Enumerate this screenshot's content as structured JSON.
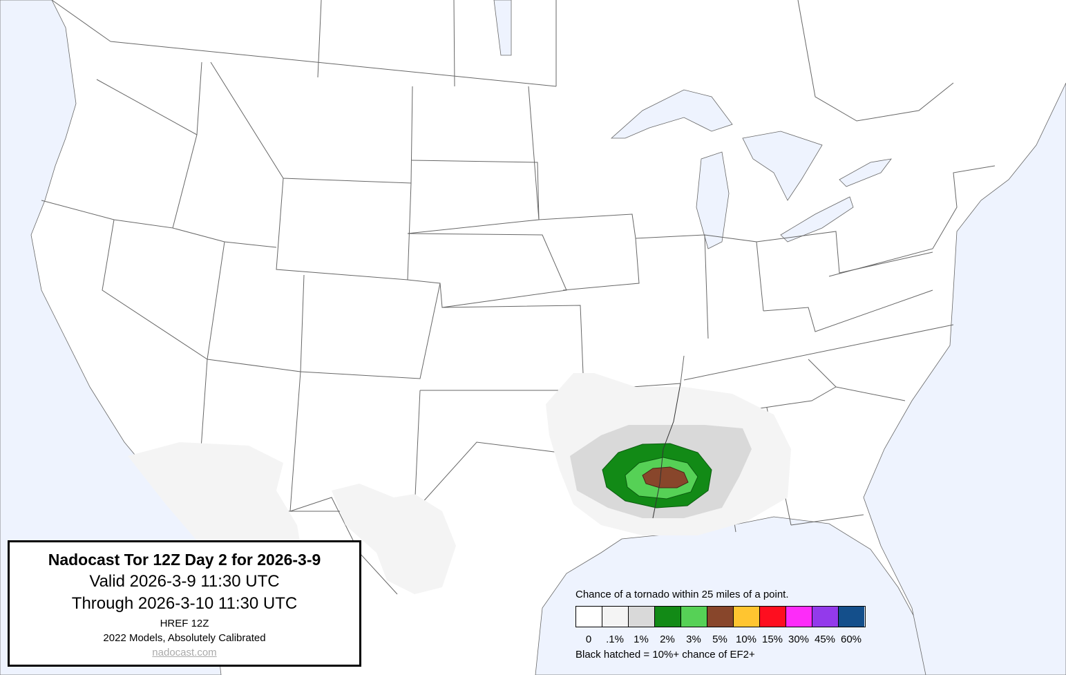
{
  "title_box": {
    "title": "Nadocast Tor 12Z Day 2 for 2026-3-9",
    "valid": "Valid 2026-3-9 11:30 UTC",
    "through": "Through 2026-3-10 11:30 UTC",
    "model": "HREF 12Z",
    "calibration": "2022 Models, Absolutely Calibrated",
    "link": "nadocast.com"
  },
  "legend": {
    "title": "Chance of a tornado within 25 miles of a point.",
    "items": [
      {
        "label": "0",
        "color": "#ffffff"
      },
      {
        "label": ".1%",
        "color": "#f4f4f4"
      },
      {
        "label": "1%",
        "color": "#d9d9d9"
      },
      {
        "label": "2%",
        "color": "#128a16"
      },
      {
        "label": "3%",
        "color": "#56d156"
      },
      {
        "label": "5%",
        "color": "#88462b"
      },
      {
        "label": "10%",
        "color": "#ffc530"
      },
      {
        "label": "15%",
        "color": "#fe0e1f"
      },
      {
        "label": "30%",
        "color": "#fd2cf9"
      },
      {
        "label": "45%",
        "color": "#933aeb"
      },
      {
        "label": "60%",
        "color": "#144f8b"
      }
    ],
    "note": "Black hatched = 10%+ chance of EF2+"
  },
  "colors": {
    "water": "#eef3fe",
    "land": "#ffffff",
    "borders": "#555555"
  }
}
